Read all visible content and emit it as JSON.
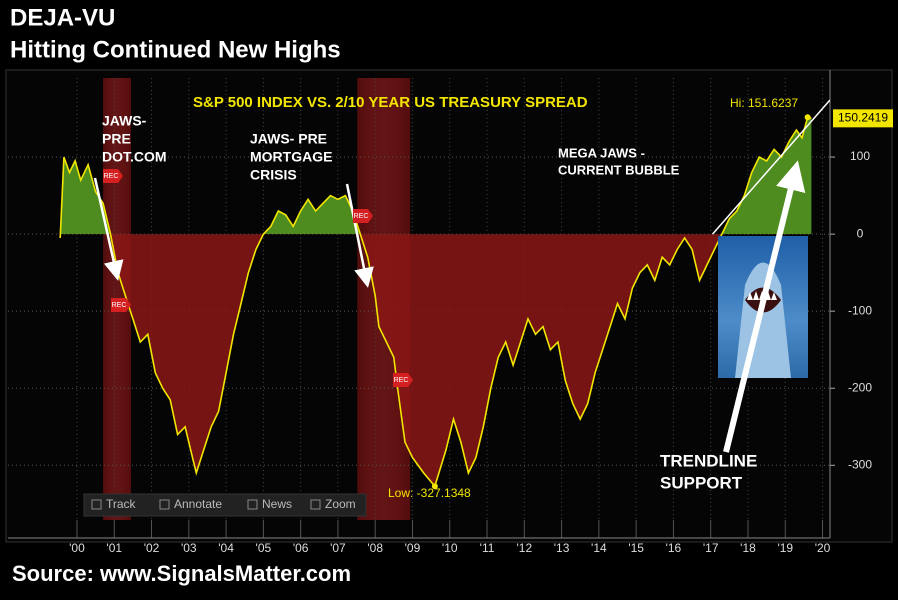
{
  "chart_data": {
    "type": "line",
    "title": "DEJA-VU",
    "subtitle": "Hitting Continued New Highs",
    "chart_title": "S&P 500 INDEX VS. 2/10 YEAR US TREASURY SPREAD",
    "source": "Source: www.SignalsMatter.com",
    "xlim": [
      1998.15,
      2020.2
    ],
    "ylim": [
      -371,
      202.6
    ],
    "xticks": [
      {
        "value": 2000,
        "label": "'00"
      },
      {
        "value": 2001,
        "label": "'01"
      },
      {
        "value": 2002,
        "label": "'02"
      },
      {
        "value": 2003,
        "label": "'03"
      },
      {
        "value": 2004,
        "label": "'04"
      },
      {
        "value": 2005,
        "label": "'05"
      },
      {
        "value": 2006,
        "label": "'06"
      },
      {
        "value": 2007,
        "label": "'07"
      },
      {
        "value": 2008,
        "label": "'08"
      },
      {
        "value": 2009,
        "label": "'09"
      },
      {
        "value": 2010,
        "label": "'10"
      },
      {
        "value": 2011,
        "label": "'11"
      },
      {
        "value": 2012,
        "label": "'12"
      },
      {
        "value": 2013,
        "label": "'13"
      },
      {
        "value": 2014,
        "label": "'14"
      },
      {
        "value": 2015,
        "label": "'15"
      },
      {
        "value": 2016,
        "label": "'16"
      },
      {
        "value": 2017,
        "label": "'17"
      },
      {
        "value": 2018,
        "label": "'18"
      },
      {
        "value": 2019,
        "label": "'19"
      },
      {
        "value": 2020,
        "label": "'20"
      }
    ],
    "yticks": [
      -300,
      -200,
      -100,
      0,
      100
    ],
    "grid": true,
    "x": [
      1999.55,
      1999.65,
      1999.8,
      1999.95,
      2000.1,
      2000.3,
      2000.5,
      2000.7,
      2000.9,
      2001.1,
      2001.3,
      2001.5,
      2001.7,
      2001.9,
      2002.1,
      2002.3,
      2002.5,
      2002.7,
      2002.9,
      2003.1,
      2003.2,
      2003.4,
      2003.6,
      2003.8,
      2004.0,
      2004.2,
      2004.4,
      2004.6,
      2004.8,
      2005.0,
      2005.2,
      2005.4,
      2005.6,
      2005.8,
      2006.0,
      2006.2,
      2006.4,
      2006.6,
      2006.8,
      2007.0,
      2007.2,
      2007.4,
      2007.6,
      2007.8,
      2008.0,
      2008.1,
      2008.3,
      2008.5,
      2008.6,
      2008.8,
      2009.0,
      2009.3,
      2009.6,
      2009.9,
      2010.1,
      2010.3,
      2010.5,
      2010.7,
      2010.9,
      2011.1,
      2011.3,
      2011.5,
      2011.7,
      2011.9,
      2012.1,
      2012.3,
      2012.5,
      2012.7,
      2012.9,
      2013.1,
      2013.3,
      2013.5,
      2013.7,
      2013.9,
      2014.1,
      2014.3,
      2014.5,
      2014.7,
      2014.9,
      2015.1,
      2015.3,
      2015.5,
      2015.7,
      2015.9,
      2016.1,
      2016.3,
      2016.5,
      2016.7,
      2016.9,
      2017.1,
      2017.3,
      2017.5,
      2017.7,
      2017.9,
      2018.1,
      2018.3,
      2018.5,
      2018.7,
      2018.9,
      2019.1,
      2019.3,
      2019.45,
      2019.6,
      2019.7
    ],
    "series": [
      {
        "color": "#f2e600",
        "values": [
          -5,
          100,
          80,
          95,
          70,
          90,
          55,
          40,
          0,
          -50,
          -80,
          -110,
          -140,
          -130,
          -180,
          -200,
          -215,
          -260,
          -250,
          -290,
          -310,
          -280,
          -250,
          -230,
          -180,
          -130,
          -90,
          -50,
          -20,
          0,
          10,
          30,
          25,
          10,
          30,
          45,
          30,
          40,
          50,
          45,
          50,
          30,
          0,
          -30,
          -80,
          -120,
          -140,
          -160,
          -200,
          -270,
          -290,
          -310,
          -327.1348,
          -280,
          -240,
          -270,
          -310,
          -290,
          -250,
          -200,
          -160,
          -140,
          -170,
          -140,
          -110,
          -130,
          -120,
          -150,
          -140,
          -190,
          -220,
          -240,
          -220,
          -180,
          -150,
          -120,
          -90,
          -110,
          -70,
          -50,
          -40,
          -60,
          -30,
          -40,
          -20,
          -5,
          -20,
          -60,
          -40,
          -20,
          0,
          20,
          30,
          50,
          80,
          100,
          95,
          110,
          100,
          120,
          135,
          125,
          151.6237,
          150.2419
        ]
      }
    ],
    "positive_fill": "#4e8c1f",
    "negative_fill": "#8b1616",
    "recessions": [
      [
        2000.7,
        2001.45
      ],
      [
        2007.52,
        2008.94
      ]
    ],
    "trendline": {
      "x": [
        2017.05,
        2020.2
      ],
      "values": [
        0,
        174
      ]
    },
    "high_label": "Hi: 151.6237",
    "low_label": "Low: -327.1348",
    "annotations": [
      [
        "JAWS-",
        "PRE",
        "DOT.COM"
      ],
      [
        "JAWS- PRE",
        "MORTGAGE",
        "CRISIS"
      ],
      [
        "MEGA JAWS -",
        "CURRENT BUBBLE"
      ],
      [
        "TRENDLINE",
        "SUPPORT"
      ]
    ],
    "rec_labels": [
      "REC",
      "REC",
      "REC",
      "REC"
    ],
    "toolbar": [
      "Track",
      "Annotate",
      "News",
      "Zoom"
    ]
  }
}
